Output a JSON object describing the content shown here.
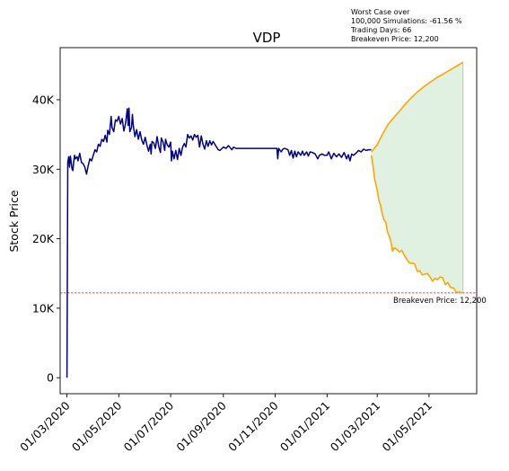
{
  "chart_data": {
    "type": "line",
    "title": "VDP",
    "xlabel": "",
    "ylabel": "Stock Price",
    "x_ticks": [
      "01/03/2020",
      "01/05/2020",
      "01/07/2020",
      "01/09/2020",
      "01/11/2020",
      "01/01/2021",
      "01/03/2021",
      "01/05/2021"
    ],
    "y_ticks": [
      {
        "value": 0,
        "label": "0"
      },
      {
        "value": 10000,
        "label": "10K"
      },
      {
        "value": 20000,
        "label": "20K"
      },
      {
        "value": 30000,
        "label": "30K"
      },
      {
        "value": 40000,
        "label": "40K"
      }
    ],
    "xlim": [
      "2020-02-22",
      "2021-06-26"
    ],
    "ylim": [
      -2300,
      47500
    ],
    "grid": false,
    "annotation_lines": [
      "Worst Case over",
      "100,000 Simulations: -61.56 %",
      "Trading Days: 66",
      "Breakeven Price: 12,200"
    ],
    "breakeven": {
      "value": 12200,
      "label": "Breakeven Price: 12,200",
      "color": "#ff0000"
    },
    "colors": {
      "history": "#00008b",
      "simulation": "#ffa500",
      "band": "#c8e6c8"
    },
    "history": {
      "name": "",
      "points": [
        [
          "2020-03-01",
          0
        ],
        [
          "2020-03-02",
          31000
        ],
        [
          "2020-03-03",
          31800
        ],
        [
          "2020-03-04",
          30300
        ],
        [
          "2020-03-05",
          31900
        ],
        [
          "2020-03-07",
          30000
        ],
        [
          "2020-03-08",
          29800
        ],
        [
          "2020-03-09",
          31200
        ],
        [
          "2020-03-10",
          32000
        ],
        [
          "2020-03-11",
          31500
        ],
        [
          "2020-03-13",
          31800
        ],
        [
          "2020-03-14",
          31200
        ],
        [
          "2020-03-16",
          32300
        ],
        [
          "2020-03-18",
          31000
        ],
        [
          "2020-03-20",
          30800
        ],
        [
          "2020-03-22",
          30300
        ],
        [
          "2020-03-24",
          29300
        ],
        [
          "2020-03-26",
          30500
        ],
        [
          "2020-03-28",
          31500
        ],
        [
          "2020-03-30",
          31200
        ],
        [
          "2020-04-01",
          32000
        ],
        [
          "2020-04-03",
          32800
        ],
        [
          "2020-04-05",
          32500
        ],
        [
          "2020-04-07",
          33600
        ],
        [
          "2020-04-09",
          33300
        ],
        [
          "2020-04-11",
          34300
        ],
        [
          "2020-04-13",
          34000
        ],
        [
          "2020-04-15",
          34900
        ],
        [
          "2020-04-17",
          33900
        ],
        [
          "2020-04-18",
          35600
        ],
        [
          "2020-04-20",
          35000
        ],
        [
          "2020-04-22",
          37600
        ],
        [
          "2020-04-23",
          36000
        ],
        [
          "2020-04-25",
          35400
        ],
        [
          "2020-04-27",
          37100
        ],
        [
          "2020-04-29",
          36900
        ],
        [
          "2020-05-01",
          37600
        ],
        [
          "2020-05-03",
          36500
        ],
        [
          "2020-05-05",
          37300
        ],
        [
          "2020-05-07",
          35500
        ],
        [
          "2020-05-09",
          36600
        ],
        [
          "2020-05-11",
          38700
        ],
        [
          "2020-05-12",
          36300
        ],
        [
          "2020-05-13",
          38800
        ],
        [
          "2020-05-14",
          35400
        ],
        [
          "2020-05-16",
          36000
        ],
        [
          "2020-05-17",
          37900
        ],
        [
          "2020-05-18",
          36400
        ],
        [
          "2020-05-20",
          34700
        ],
        [
          "2020-05-22",
          35700
        ],
        [
          "2020-05-24",
          34300
        ],
        [
          "2020-05-26",
          35400
        ],
        [
          "2020-05-28",
          34200
        ],
        [
          "2020-05-30",
          33600
        ],
        [
          "2020-06-01",
          34600
        ],
        [
          "2020-06-03",
          33500
        ],
        [
          "2020-06-05",
          32600
        ],
        [
          "2020-06-07",
          33600
        ],
        [
          "2020-06-08",
          32200
        ],
        [
          "2020-06-09",
          34000
        ],
        [
          "2020-06-11",
          33800
        ],
        [
          "2020-06-13",
          33000
        ],
        [
          "2020-06-15",
          34700
        ],
        [
          "2020-06-17",
          33300
        ],
        [
          "2020-06-19",
          32400
        ],
        [
          "2020-06-20",
          34500
        ],
        [
          "2020-06-22",
          33900
        ],
        [
          "2020-06-24",
          32700
        ],
        [
          "2020-06-25",
          34300
        ],
        [
          "2020-06-27",
          33500
        ],
        [
          "2020-06-29",
          33200
        ],
        [
          "2020-07-01",
          33900
        ],
        [
          "2020-07-02",
          31200
        ],
        [
          "2020-07-03",
          32600
        ],
        [
          "2020-07-05",
          31500
        ],
        [
          "2020-07-07",
          32700
        ],
        [
          "2020-07-09",
          31400
        ],
        [
          "2020-07-11",
          33000
        ],
        [
          "2020-07-13",
          32000
        ],
        [
          "2020-07-15",
          33200
        ],
        [
          "2020-07-17",
          33700
        ],
        [
          "2020-07-19",
          33200
        ],
        [
          "2020-07-21",
          35000
        ],
        [
          "2020-07-23",
          34500
        ],
        [
          "2020-07-25",
          34800
        ],
        [
          "2020-07-27",
          34200
        ],
        [
          "2020-07-29",
          35000
        ],
        [
          "2020-07-31",
          34600
        ],
        [
          "2020-08-02",
          34900
        ],
        [
          "2020-08-04",
          33200
        ],
        [
          "2020-08-06",
          34800
        ],
        [
          "2020-08-08",
          33600
        ],
        [
          "2020-08-10",
          32900
        ],
        [
          "2020-08-12",
          34100
        ],
        [
          "2020-08-14",
          33300
        ],
        [
          "2020-08-16",
          34100
        ],
        [
          "2020-08-18",
          33500
        ],
        [
          "2020-08-20",
          34000
        ],
        [
          "2020-08-22",
          33600
        ],
        [
          "2020-08-24",
          33200
        ],
        [
          "2020-08-26",
          32800
        ],
        [
          "2020-08-28",
          32700
        ],
        [
          "2020-09-01",
          33200
        ],
        [
          "2020-09-04",
          33000
        ],
        [
          "2020-09-07",
          33400
        ],
        [
          "2020-09-09",
          33100
        ],
        [
          "2020-09-11",
          32800
        ],
        [
          "2020-09-13",
          33200
        ],
        [
          "2020-09-16",
          33000
        ],
        [
          "2020-09-20",
          33000
        ],
        [
          "2020-09-30",
          33000
        ],
        [
          "2020-10-10",
          33000
        ],
        [
          "2020-10-20",
          33000
        ],
        [
          "2020-10-30",
          33000
        ],
        [
          "2020-11-03",
          33000
        ],
        [
          "2020-11-04",
          31500
        ],
        [
          "2020-11-05",
          33000
        ],
        [
          "2020-11-08",
          32500
        ],
        [
          "2020-11-10",
          32900
        ],
        [
          "2020-11-12",
          33000
        ],
        [
          "2020-11-16",
          32800
        ],
        [
          "2020-11-18",
          32000
        ],
        [
          "2020-11-20",
          32700
        ],
        [
          "2020-11-22",
          31600
        ],
        [
          "2020-11-24",
          32600
        ],
        [
          "2020-11-26",
          31800
        ],
        [
          "2020-11-28",
          32500
        ],
        [
          "2020-12-01",
          32000
        ],
        [
          "2020-12-03",
          32600
        ],
        [
          "2020-12-05",
          32000
        ],
        [
          "2020-12-08",
          32500
        ],
        [
          "2020-12-10",
          31900
        ],
        [
          "2020-12-12",
          32500
        ],
        [
          "2020-12-15",
          32400
        ],
        [
          "2020-12-18",
          32200
        ],
        [
          "2020-12-21",
          31500
        ],
        [
          "2020-12-23",
          32000
        ],
        [
          "2020-12-26",
          32200
        ],
        [
          "2020-12-29",
          32000
        ],
        [
          "2021-01-01",
          32000
        ],
        [
          "2021-01-03",
          32500
        ],
        [
          "2021-01-06",
          31500
        ],
        [
          "2021-01-09",
          32300
        ],
        [
          "2021-01-12",
          31800
        ],
        [
          "2021-01-15",
          32200
        ],
        [
          "2021-01-18",
          31700
        ],
        [
          "2021-01-21",
          32400
        ],
        [
          "2021-01-24",
          31500
        ],
        [
          "2021-01-26",
          32100
        ],
        [
          "2021-01-28",
          31200
        ],
        [
          "2021-01-30",
          32200
        ],
        [
          "2021-02-01",
          32000
        ],
        [
          "2021-02-04",
          32300
        ],
        [
          "2021-02-07",
          32700
        ],
        [
          "2021-02-10",
          32500
        ],
        [
          "2021-02-13",
          32900
        ],
        [
          "2021-02-16",
          32700
        ],
        [
          "2021-02-19",
          32800
        ],
        [
          "2021-02-22",
          32800
        ]
      ]
    },
    "simulation_upper": {
      "name": "",
      "points": [
        [
          "2021-02-22",
          32500
        ],
        [
          "2021-03-01",
          33500
        ],
        [
          "2021-03-07",
          35000
        ],
        [
          "2021-03-14",
          36500
        ],
        [
          "2021-03-21",
          37500
        ],
        [
          "2021-03-28",
          38500
        ],
        [
          "2021-04-04",
          39500
        ],
        [
          "2021-04-11",
          40400
        ],
        [
          "2021-04-18",
          41200
        ],
        [
          "2021-04-25",
          41900
        ],
        [
          "2021-05-02",
          42500
        ],
        [
          "2021-05-09",
          43100
        ],
        [
          "2021-05-16",
          43600
        ],
        [
          "2021-05-23",
          44100
        ],
        [
          "2021-05-30",
          44600
        ],
        [
          "2021-06-06",
          45100
        ],
        [
          "2021-06-10",
          45400
        ]
      ]
    },
    "simulation_lower": {
      "name": "",
      "points": [
        [
          "2021-02-22",
          32000
        ],
        [
          "2021-02-24",
          30500
        ],
        [
          "2021-02-26",
          28500
        ],
        [
          "2021-03-01",
          27000
        ],
        [
          "2021-03-03",
          25500
        ],
        [
          "2021-03-05",
          24800
        ],
        [
          "2021-03-07",
          23500
        ],
        [
          "2021-03-09",
          22700
        ],
        [
          "2021-03-11",
          22400
        ],
        [
          "2021-03-13",
          21000
        ],
        [
          "2021-03-15",
          20400
        ],
        [
          "2021-03-17",
          19600
        ],
        [
          "2021-03-19",
          18200
        ],
        [
          "2021-03-21",
          18700
        ],
        [
          "2021-03-24",
          18500
        ],
        [
          "2021-03-27",
          18100
        ],
        [
          "2021-03-30",
          18300
        ],
        [
          "2021-04-02",
          17600
        ],
        [
          "2021-04-05",
          17000
        ],
        [
          "2021-04-08",
          16500
        ],
        [
          "2021-04-11",
          16500
        ],
        [
          "2021-04-14",
          16400
        ],
        [
          "2021-04-17",
          15300
        ],
        [
          "2021-04-20",
          15400
        ],
        [
          "2021-04-23",
          14800
        ],
        [
          "2021-04-26",
          14900
        ],
        [
          "2021-04-29",
          15000
        ],
        [
          "2021-05-02",
          14500
        ],
        [
          "2021-05-05",
          13900
        ],
        [
          "2021-05-08",
          14300
        ],
        [
          "2021-05-11",
          14100
        ],
        [
          "2021-05-14",
          14500
        ],
        [
          "2021-05-17",
          14400
        ],
        [
          "2021-05-20",
          13400
        ],
        [
          "2021-05-23",
          13700
        ],
        [
          "2021-05-26",
          13000
        ],
        [
          "2021-05-30",
          12900
        ],
        [
          "2021-06-02",
          12300
        ],
        [
          "2021-06-06",
          12300
        ],
        [
          "2021-06-10",
          12200
        ]
      ]
    }
  }
}
